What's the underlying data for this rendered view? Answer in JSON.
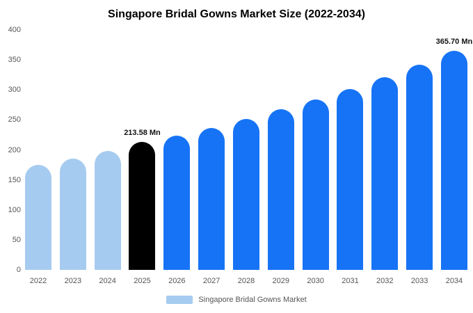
{
  "chart_data": {
    "type": "bar",
    "title": "Singapore Bridal Gowns Market Size (2022-2034)",
    "categories": [
      "2022",
      "2023",
      "2024",
      "2025",
      "2026",
      "2027",
      "2028",
      "2029",
      "2030",
      "2031",
      "2032",
      "2033",
      "2034"
    ],
    "values": [
      175,
      185,
      198,
      213.58,
      224,
      237,
      252,
      268,
      284,
      302,
      321,
      342,
      365.7
    ],
    "bar_color_keys": [
      "light",
      "light",
      "light",
      "black",
      "blue",
      "blue",
      "blue",
      "blue",
      "blue",
      "blue",
      "blue",
      "blue",
      "blue"
    ],
    "palette": {
      "light": "#A6CBF0",
      "blue": "#1673F5",
      "black": "#000000"
    },
    "annotations": [
      {
        "category": "2025",
        "text": "213.58 Mn"
      },
      {
        "category": "2034",
        "text": "365.70 Mn"
      }
    ],
    "xlabel": "",
    "ylabel": "",
    "ylim": [
      0,
      400
    ],
    "yticks": [
      0,
      50,
      100,
      150,
      200,
      250,
      300,
      350,
      400
    ],
    "grid": false,
    "legend_position": "bottom",
    "legend": [
      {
        "label": "Singapore Bridal Gowns Market",
        "color": "#A6CBF0"
      }
    ]
  }
}
